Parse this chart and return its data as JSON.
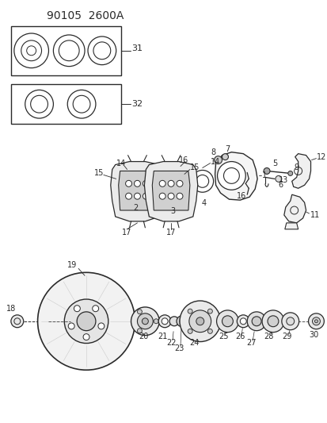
{
  "title": "90105  2600A",
  "bg_color": "#ffffff",
  "lc": "#2a2a2a",
  "fig_width": 4.14,
  "fig_height": 5.33,
  "dpi": 100
}
